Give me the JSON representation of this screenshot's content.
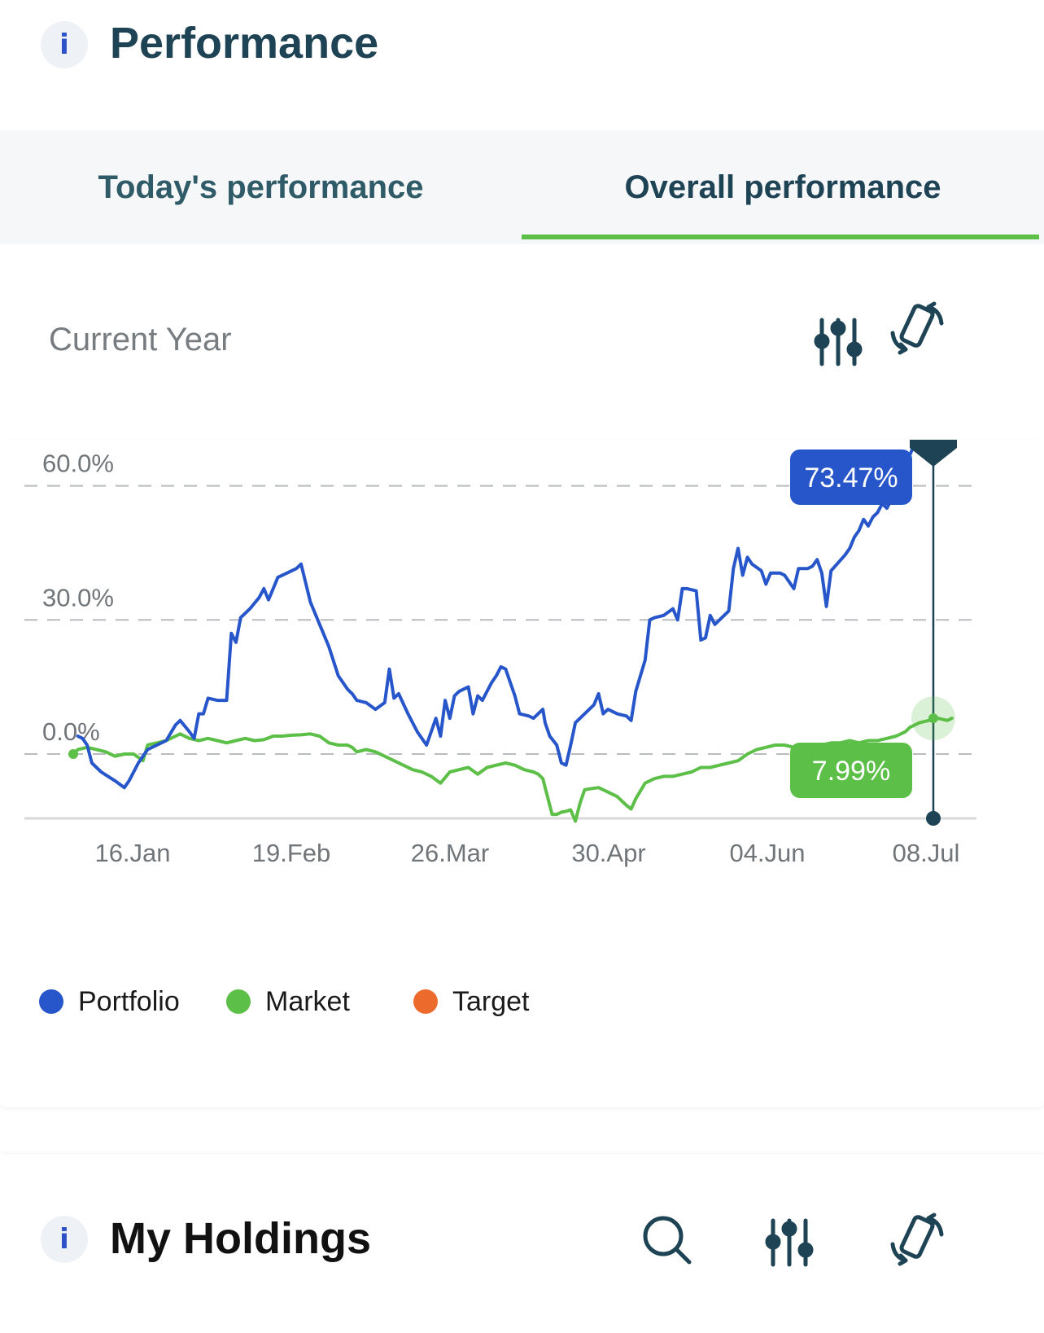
{
  "header": {
    "info_icon": "i",
    "title": "Performance"
  },
  "tabs": [
    {
      "label": "Today's performance",
      "active": false
    },
    {
      "label": "Overall performance",
      "active": true
    }
  ],
  "toolbar": {
    "period_label": "Current Year",
    "filter_icon": "sliders-icon",
    "rotate_icon": "rotate-device-icon"
  },
  "colors": {
    "portfolio": "#2656c9",
    "market": "#5cbf47",
    "target": "#ec6a2c",
    "accent": "#5cbf47",
    "dark": "#1d4354"
  },
  "tooltip": {
    "portfolio_value": "73.47%",
    "market_value": "7.99%"
  },
  "legend": [
    {
      "label": "Portfolio",
      "color": "#2656c9"
    },
    {
      "label": "Market",
      "color": "#5cbf47"
    },
    {
      "label": "Target",
      "color": "#ec6a2c"
    }
  ],
  "chart_data": {
    "type": "line",
    "title": "",
    "xlabel": "",
    "ylabel": "",
    "y_tick_labels": [
      "0.0%",
      "30.0%",
      "60.0%"
    ],
    "x_tick_labels": [
      "16.Jan",
      "19.Feb",
      "26.Mar",
      "30.Apr",
      "04.Jun",
      "08.Jul"
    ],
    "ylim": [
      -14,
      73.5
    ],
    "xlim": [
      0,
      185
    ],
    "grid": true,
    "legend_position": "bottom-left",
    "series": [
      {
        "name": "Portfolio",
        "color": "#2656c9",
        "points": [
          [
            1,
            4
          ],
          [
            2,
            3.5
          ],
          [
            3,
            2
          ],
          [
            4,
            -2
          ],
          [
            6,
            -4
          ],
          [
            9,
            -6
          ],
          [
            11,
            -7.5
          ],
          [
            12,
            -6
          ],
          [
            14,
            -2
          ],
          [
            16,
            1
          ],
          [
            18,
            2
          ],
          [
            20,
            3
          ],
          [
            22,
            6.5
          ],
          [
            23,
            7.5
          ],
          [
            25,
            5
          ],
          [
            26,
            3.5
          ],
          [
            27,
            9
          ],
          [
            28,
            9
          ],
          [
            29,
            12.5
          ],
          [
            31,
            12
          ],
          [
            33,
            12
          ],
          [
            34,
            27
          ],
          [
            35,
            25
          ],
          [
            36,
            30.5
          ],
          [
            38,
            32.5
          ],
          [
            40,
            35
          ],
          [
            41,
            37
          ],
          [
            42,
            34.5
          ],
          [
            44,
            39.5
          ],
          [
            46,
            40.5
          ],
          [
            48,
            41.5
          ],
          [
            49,
            42.5
          ],
          [
            51,
            34
          ],
          [
            53,
            29
          ],
          [
            55,
            24
          ],
          [
            57,
            17.5
          ],
          [
            59,
            14.5
          ],
          [
            60,
            13.5
          ],
          [
            61,
            12
          ],
          [
            63,
            11.5
          ],
          [
            65,
            10
          ],
          [
            67,
            11.5
          ],
          [
            68,
            19
          ],
          [
            69,
            12.5
          ],
          [
            70,
            13.5
          ],
          [
            72,
            9
          ],
          [
            74,
            5
          ],
          [
            76,
            2
          ],
          [
            78,
            8
          ],
          [
            79,
            4
          ],
          [
            80,
            12
          ],
          [
            81,
            8
          ],
          [
            82,
            13
          ],
          [
            83,
            14
          ],
          [
            85,
            15
          ],
          [
            86,
            9
          ],
          [
            87,
            13
          ],
          [
            88,
            12
          ],
          [
            89,
            14
          ],
          [
            90,
            16
          ],
          [
            91,
            17.5
          ],
          [
            92,
            19.5
          ],
          [
            93,
            19
          ],
          [
            94,
            16
          ],
          [
            95,
            13
          ],
          [
            96,
            9
          ],
          [
            98,
            8.5
          ],
          [
            99,
            8
          ],
          [
            101,
            10
          ],
          [
            101.5,
            7
          ],
          [
            102.5,
            4
          ],
          [
            104,
            2
          ],
          [
            105,
            -2
          ],
          [
            106,
            -2.5
          ],
          [
            107,
            2
          ],
          [
            108,
            7
          ],
          [
            110,
            9
          ],
          [
            112,
            11
          ],
          [
            113,
            13.5
          ],
          [
            114,
            9
          ],
          [
            115,
            10
          ],
          [
            117,
            9
          ],
          [
            119,
            8.5
          ],
          [
            120,
            7.5
          ],
          [
            121,
            14
          ],
          [
            123,
            21
          ],
          [
            124,
            30
          ],
          [
            125,
            30.5
          ],
          [
            127,
            31
          ],
          [
            129,
            32.5
          ],
          [
            130,
            30
          ],
          [
            131,
            37
          ],
          [
            132,
            37
          ],
          [
            134,
            36.5
          ],
          [
            135,
            25.5
          ],
          [
            136,
            26
          ],
          [
            137,
            31
          ],
          [
            138,
            29
          ],
          [
            139,
            30
          ],
          [
            140,
            31
          ],
          [
            141,
            32
          ],
          [
            142,
            41.5
          ],
          [
            143,
            46
          ],
          [
            144,
            40
          ],
          [
            145,
            44
          ],
          [
            146,
            42.5
          ],
          [
            148,
            41
          ],
          [
            149,
            38
          ],
          [
            150,
            40.5
          ],
          [
            152,
            40.5
          ],
          [
            153,
            40
          ],
          [
            155,
            37
          ],
          [
            156,
            41.5
          ],
          [
            158,
            41.5
          ],
          [
            159,
            42
          ],
          [
            160,
            43.5
          ],
          [
            161,
            40.5
          ],
          [
            162,
            33
          ],
          [
            163,
            41
          ],
          [
            166,
            44.5
          ],
          [
            167,
            46
          ],
          [
            168,
            48.5
          ],
          [
            169,
            50
          ],
          [
            170,
            52.5
          ],
          [
            171,
            51
          ],
          [
            172,
            53
          ],
          [
            173,
            54
          ],
          [
            174,
            56
          ],
          [
            175,
            55
          ],
          [
            176,
            57
          ],
          [
            177,
            59.5
          ],
          [
            178,
            62
          ],
          [
            179,
            63.5
          ],
          [
            180,
            67
          ],
          [
            182,
            72
          ],
          [
            183,
            73.47
          ]
        ]
      },
      {
        "name": "Market",
        "color": "#5cbf47",
        "points": [
          [
            0,
            0
          ],
          [
            1,
            1
          ],
          [
            3,
            1.5
          ],
          [
            5,
            1
          ],
          [
            7,
            0.5
          ],
          [
            9,
            -0.5
          ],
          [
            11,
            0
          ],
          [
            13,
            0
          ],
          [
            15,
            -1.5
          ],
          [
            16,
            2
          ],
          [
            18,
            2.5
          ],
          [
            20,
            3
          ],
          [
            22,
            4
          ],
          [
            23,
            4.5
          ],
          [
            25,
            3.5
          ],
          [
            27,
            3
          ],
          [
            29,
            3.5
          ],
          [
            31,
            3
          ],
          [
            33,
            2.5
          ],
          [
            35,
            3
          ],
          [
            37,
            3.5
          ],
          [
            39,
            3
          ],
          [
            41,
            3.2
          ],
          [
            43,
            4
          ],
          [
            45,
            4
          ],
          [
            47,
            4.2
          ],
          [
            49,
            4.3
          ],
          [
            51,
            4.5
          ],
          [
            53,
            4
          ],
          [
            55,
            2.5
          ],
          [
            57,
            2
          ],
          [
            59,
            2
          ],
          [
            60,
            1.5
          ],
          [
            61,
            0.5
          ],
          [
            63,
            1
          ],
          [
            65,
            0.5
          ],
          [
            67,
            -0.5
          ],
          [
            69,
            -1.5
          ],
          [
            71,
            -2.5
          ],
          [
            73,
            -3.5
          ],
          [
            75,
            -4
          ],
          [
            77,
            -5
          ],
          [
            79,
            -6.5
          ],
          [
            81,
            -4
          ],
          [
            83,
            -3.5
          ],
          [
            85,
            -3
          ],
          [
            87,
            -4.5
          ],
          [
            89,
            -3
          ],
          [
            91,
            -2.5
          ],
          [
            93,
            -2
          ],
          [
            95,
            -2.5
          ],
          [
            97,
            -3.5
          ],
          [
            99,
            -4
          ],
          [
            100,
            -4.5
          ],
          [
            101,
            -5.5
          ],
          [
            103,
            -13.5
          ],
          [
            104,
            -13.5
          ],
          [
            105,
            -13
          ],
          [
            106,
            -12.8
          ],
          [
            107,
            -12.5
          ],
          [
            108,
            -15
          ],
          [
            109,
            -11
          ],
          [
            110,
            -8
          ],
          [
            111,
            -7.8
          ],
          [
            113,
            -7.5
          ],
          [
            115,
            -8.5
          ],
          [
            117,
            -9.5
          ],
          [
            119,
            -11.5
          ],
          [
            120,
            -12.3
          ],
          [
            121,
            -10
          ],
          [
            123,
            -6.5
          ],
          [
            125,
            -5.5
          ],
          [
            127,
            -5
          ],
          [
            129,
            -5
          ],
          [
            131,
            -4.5
          ],
          [
            133,
            -4
          ],
          [
            135,
            -3
          ],
          [
            137,
            -3
          ],
          [
            139,
            -2.5
          ],
          [
            141,
            -2
          ],
          [
            143,
            -1.5
          ],
          [
            145,
            0
          ],
          [
            147,
            1
          ],
          [
            149,
            1.5
          ],
          [
            151,
            2
          ],
          [
            153,
            2
          ],
          [
            155,
            1.5
          ],
          [
            157,
            1
          ],
          [
            159,
            1.5
          ],
          [
            161,
            2
          ],
          [
            163,
            2.5
          ],
          [
            165,
            2.5
          ],
          [
            167,
            3
          ],
          [
            169,
            2.5
          ],
          [
            171,
            3
          ],
          [
            173,
            3
          ],
          [
            175,
            3.5
          ],
          [
            177,
            4
          ],
          [
            179,
            5
          ],
          [
            180,
            6
          ],
          [
            182,
            7
          ],
          [
            184,
            7.5
          ],
          [
            186,
            8
          ],
          [
            188,
            7.5
          ],
          [
            189,
            7.99
          ]
        ]
      },
      {
        "name": "Target",
        "color": "#ec6a2c",
        "points": []
      }
    ]
  },
  "holdings": {
    "info_icon": "i",
    "title": "My Holdings",
    "search_icon": "search-icon",
    "filter_icon": "sliders-icon",
    "rotate_icon": "rotate-device-icon"
  }
}
